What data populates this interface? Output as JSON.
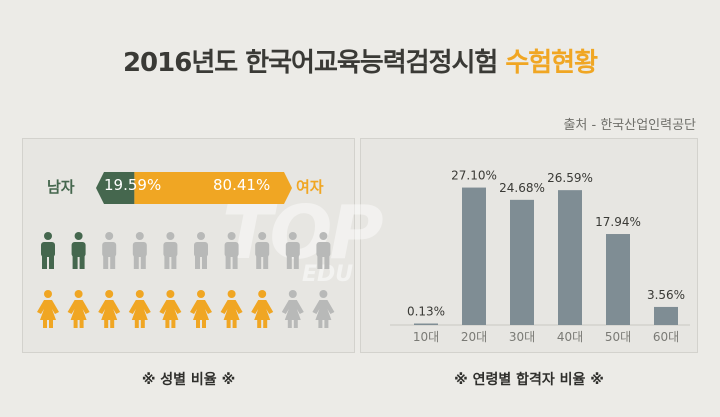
{
  "title": {
    "main": "2016년도 한국어교육능력검정시험",
    "highlight": "수험현황"
  },
  "source": "출처 - 한국산업인력공단",
  "watermark": {
    "top": "TOP",
    "edu": "EDU"
  },
  "gender": {
    "male_label": "남자",
    "female_label": "여자",
    "male_pct_text": "19.59%",
    "female_pct_text": "80.41%",
    "caption": "※ 성별 비율 ※",
    "colors": {
      "male": "#45674e",
      "female": "#f0a623",
      "gray": "#b8b9b8"
    },
    "icons": {
      "male_highlighted": 2,
      "male_total": 10,
      "female_highlighted": 8,
      "female_total": 10
    }
  },
  "age_caption": "※ 연령별 합격자 비율 ※",
  "chart_data": [
    {
      "type": "bar",
      "categories": [
        "남자",
        "여자"
      ],
      "values": [
        19.59,
        80.41
      ],
      "title": "",
      "xlabel": "",
      "ylabel": ""
    },
    {
      "type": "bar",
      "categories": [
        "10대",
        "20대",
        "30대",
        "40대",
        "50대",
        "60대"
      ],
      "values": [
        0.13,
        27.1,
        24.68,
        26.59,
        17.94,
        3.56
      ],
      "value_labels": [
        "0.13%",
        "27.10%",
        "24.68%",
        "26.59%",
        "17.94%",
        "3.56%"
      ],
      "title": "",
      "xlabel": "",
      "ylabel": "",
      "ylim": [
        0,
        28
      ],
      "color": "#7f8d94",
      "grid": false
    }
  ]
}
